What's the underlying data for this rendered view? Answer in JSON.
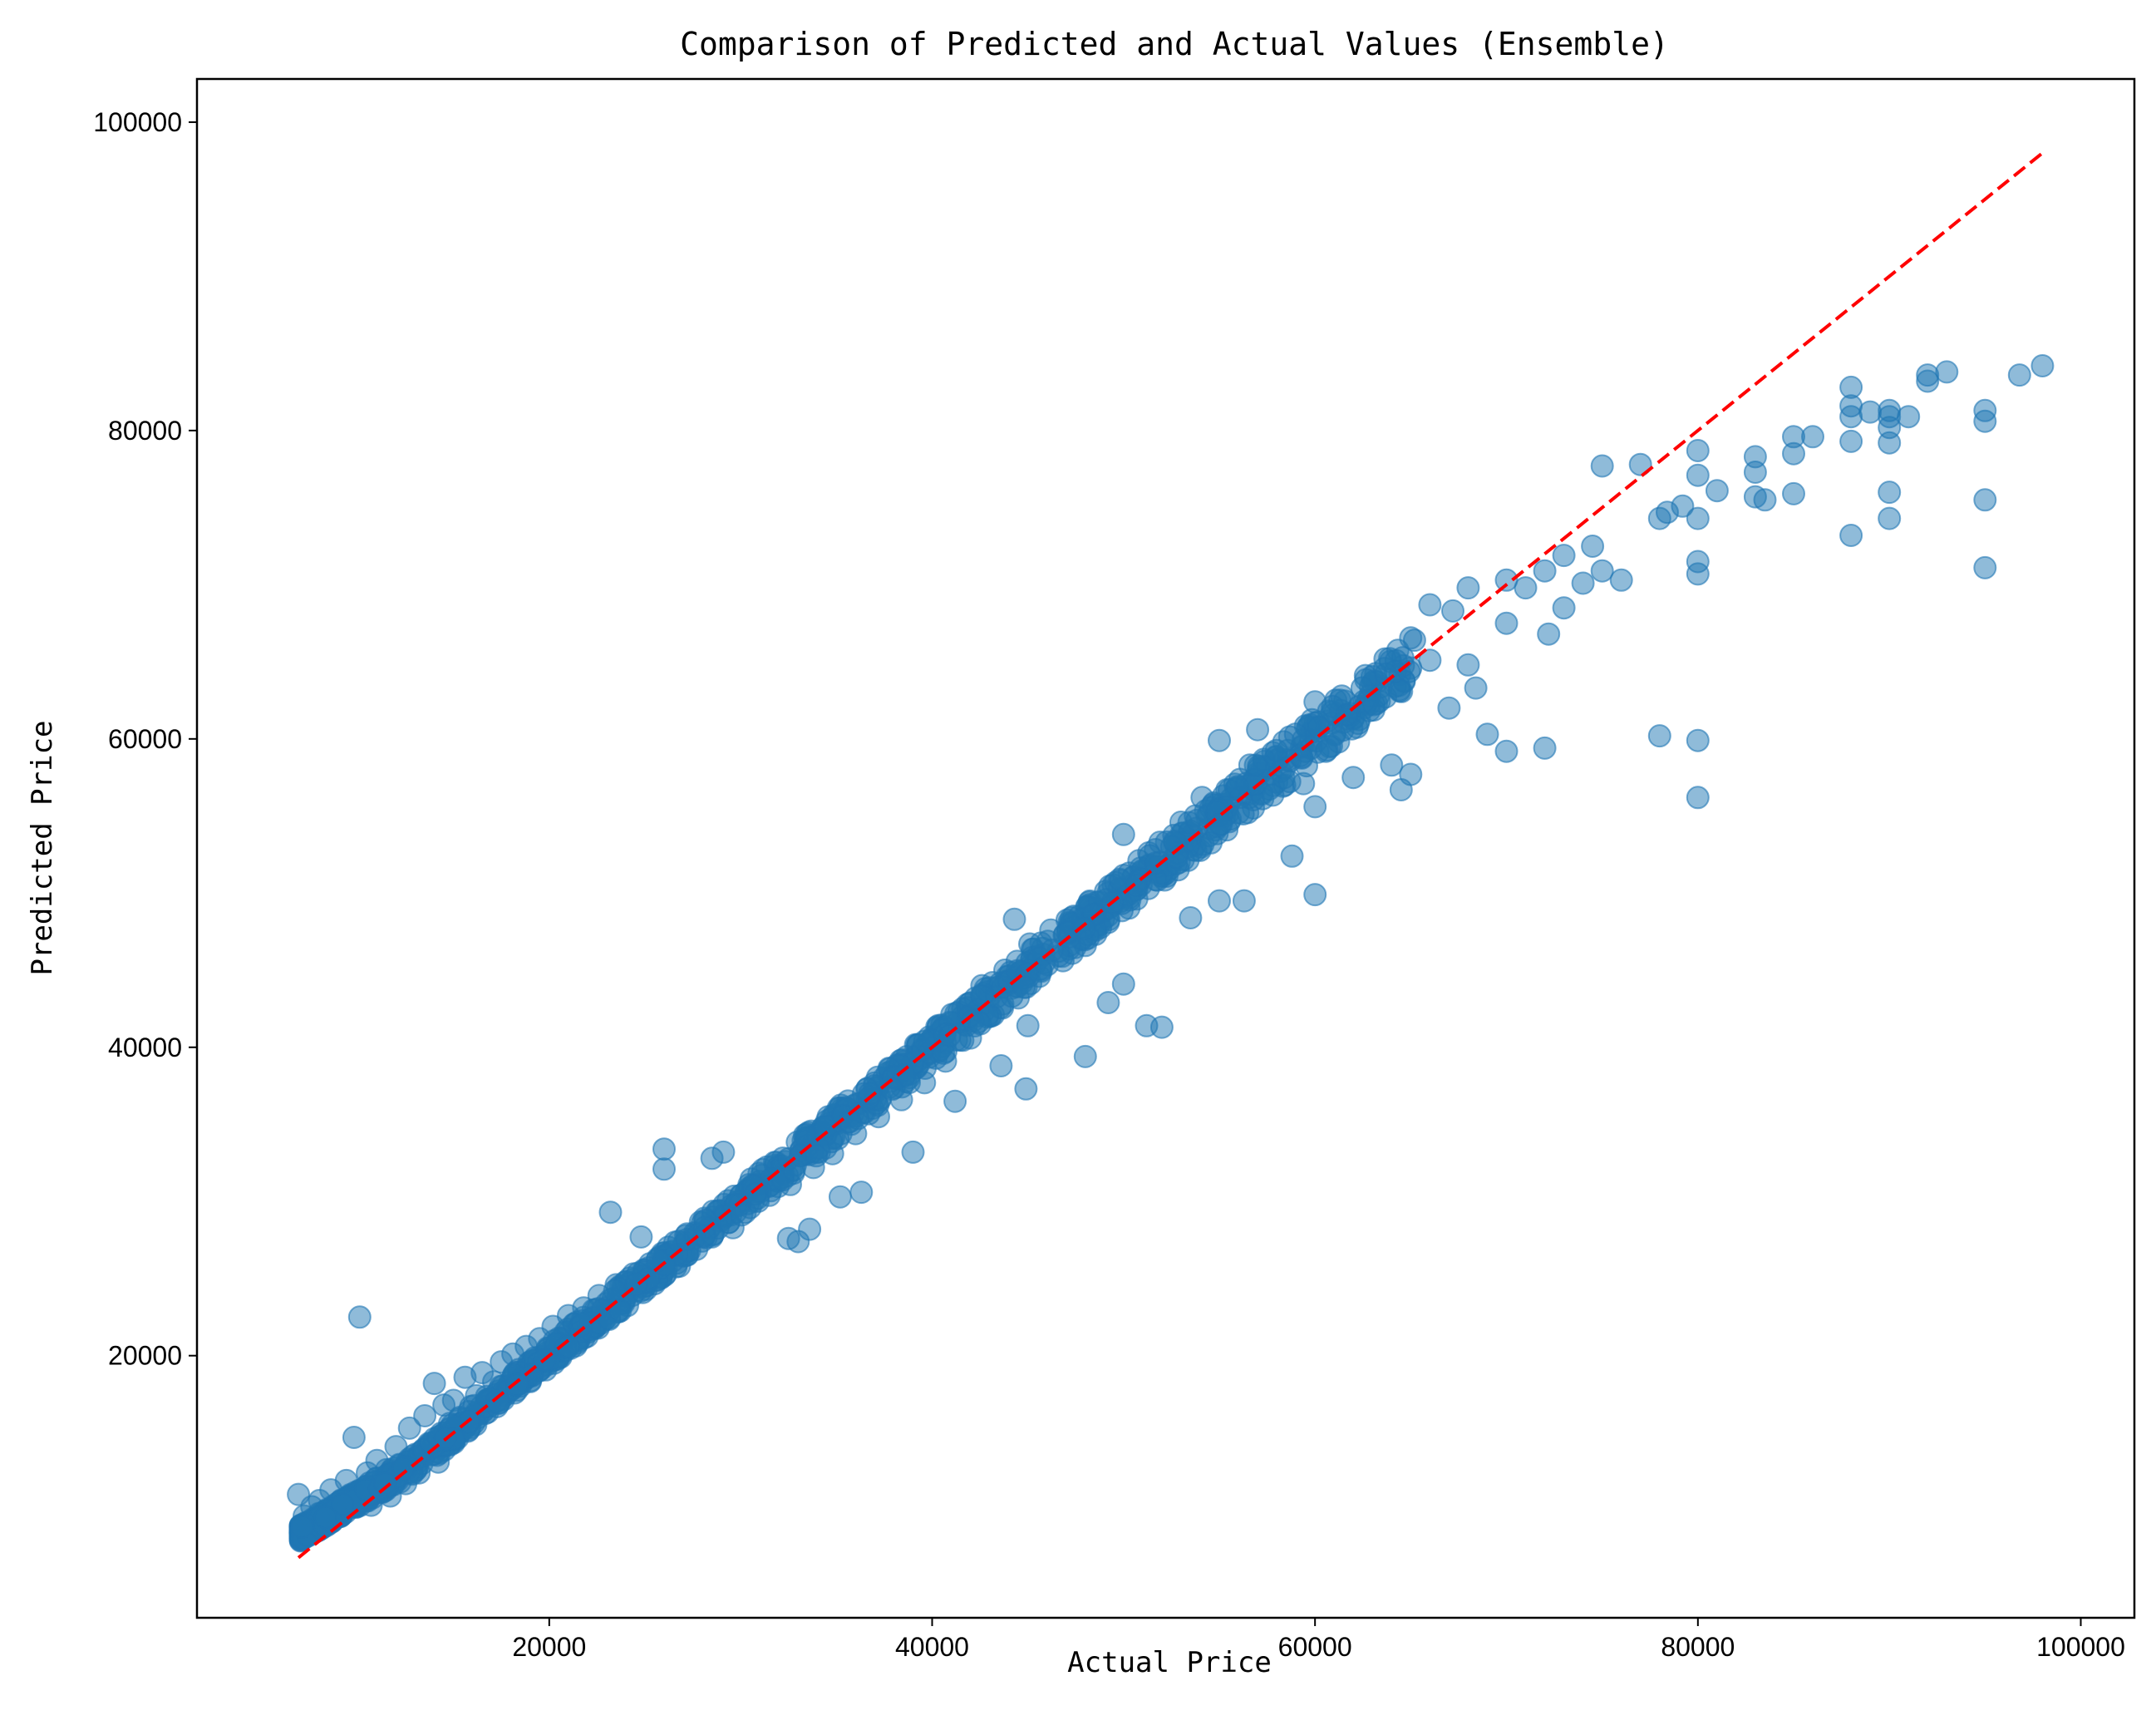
{
  "chart_data": {
    "type": "scatter",
    "title": "Comparison of Predicted and Actual Values (Ensemble)",
    "xlabel": "Actual Price",
    "ylabel": "Predicted Price",
    "xlim": [
      1600,
      102800
    ],
    "ylim": [
      3000,
      102800
    ],
    "x_ticks": [
      20000,
      40000,
      60000,
      80000,
      100000
    ],
    "y_ticks": [
      20000,
      40000,
      60000,
      80000,
      100000
    ],
    "x_tick_labels": [
      "20000",
      "40000",
      "60000",
      "80000",
      "100000"
    ],
    "y_tick_labels": [
      "20000",
      "40000",
      "60000",
      "80000",
      "100000"
    ],
    "grid": false,
    "legend": "none",
    "colors": {
      "points": "#1f77b4",
      "reference_line": "#ff0000"
    },
    "reference_line": {
      "style": "dashed",
      "x": [
        6900,
        98000
      ],
      "y": [
        6900,
        98000
      ]
    },
    "series": [
      {
        "points": [
          [
            6900,
            11000
          ],
          [
            7200,
            9600
          ],
          [
            7600,
            10200
          ],
          [
            8000,
            10600
          ],
          [
            8300,
            9900
          ],
          [
            8600,
            11300
          ],
          [
            8900,
            10400
          ],
          [
            9100,
            9800
          ],
          [
            9400,
            11900
          ],
          [
            9600,
            10700
          ],
          [
            9800,
            14700
          ],
          [
            10100,
            22500
          ],
          [
            10200,
            11100
          ],
          [
            10500,
            12400
          ],
          [
            10700,
            10300
          ],
          [
            11000,
            13200
          ],
          [
            11200,
            11800
          ],
          [
            11500,
            12600
          ],
          [
            11700,
            10900
          ],
          [
            12000,
            14100
          ],
          [
            12200,
            12900
          ],
          [
            12500,
            11700
          ],
          [
            12700,
            15300
          ],
          [
            13000,
            13600
          ],
          [
            13200,
            12400
          ],
          [
            13500,
            16100
          ],
          [
            13700,
            14300
          ],
          [
            14000,
            18200
          ],
          [
            14200,
            13100
          ],
          [
            14500,
            16800
          ],
          [
            14800,
            15600
          ],
          [
            15000,
            17100
          ],
          [
            15300,
            15900
          ],
          [
            15600,
            18600
          ],
          [
            15900,
            16700
          ],
          [
            16200,
            17400
          ],
          [
            16500,
            18900
          ],
          [
            16800,
            17100
          ],
          [
            17100,
            18300
          ],
          [
            17500,
            19600
          ],
          [
            17800,
            17900
          ],
          [
            18100,
            20100
          ],
          [
            18400,
            19100
          ],
          [
            18800,
            20600
          ],
          [
            19100,
            19500
          ],
          [
            19500,
            21100
          ],
          [
            19900,
            20200
          ],
          [
            20200,
            21900
          ],
          [
            20600,
            21000
          ],
          [
            21000,
            22600
          ],
          [
            21400,
            21600
          ],
          [
            21800,
            23100
          ],
          [
            22200,
            22100
          ],
          [
            22600,
            23900
          ],
          [
            23000,
            22700
          ],
          [
            23200,
            29300
          ],
          [
            23500,
            24600
          ],
          [
            23900,
            23400
          ],
          [
            24400,
            25300
          ],
          [
            24800,
            27700
          ],
          [
            25200,
            25700
          ],
          [
            25600,
            24900
          ],
          [
            26000,
            33400
          ],
          [
            26000,
            32100
          ],
          [
            26300,
            26700
          ],
          [
            26800,
            25800
          ],
          [
            27200,
            27900
          ],
          [
            27700,
            26900
          ],
          [
            28000,
            28600
          ],
          [
            28500,
            27700
          ],
          [
            28500,
            32800
          ],
          [
            29100,
            33200
          ],
          [
            29100,
            29100
          ],
          [
            29600,
            28300
          ],
          [
            30000,
            30400
          ],
          [
            30500,
            29600
          ],
          [
            31000,
            31300
          ],
          [
            31500,
            30400
          ],
          [
            32000,
            32100
          ],
          [
            32500,
            27600
          ],
          [
            32600,
            31100
          ],
          [
            33000,
            27400
          ],
          [
            33200,
            33100
          ],
          [
            33600,
            28200
          ],
          [
            33800,
            32200
          ],
          [
            34300,
            34300
          ],
          [
            34800,
            33100
          ],
          [
            35200,
            30300
          ],
          [
            35400,
            35500
          ],
          [
            36000,
            34400
          ],
          [
            36300,
            30600
          ],
          [
            36600,
            36500
          ],
          [
            37200,
            35500
          ],
          [
            37800,
            37800
          ],
          [
            38400,
            36600
          ],
          [
            39000,
            33200
          ],
          [
            39000,
            38900
          ],
          [
            39600,
            37700
          ],
          [
            40100,
            40400
          ],
          [
            40700,
            39100
          ],
          [
            41200,
            36500
          ],
          [
            41400,
            42300
          ],
          [
            42000,
            40600
          ],
          [
            42600,
            44000
          ],
          [
            43200,
            42100
          ],
          [
            43600,
            38800
          ],
          [
            43800,
            45000
          ],
          [
            44300,
            48300
          ],
          [
            44500,
            43200
          ],
          [
            44900,
            37300
          ],
          [
            45000,
            41400
          ],
          [
            45100,
            46700
          ],
          [
            45600,
            44600
          ],
          [
            46200,
            47600
          ],
          [
            46800,
            45900
          ],
          [
            47400,
            48500
          ],
          [
            48000,
            39400
          ],
          [
            48000,
            46600
          ],
          [
            48600,
            49400
          ],
          [
            49200,
            42900
          ],
          [
            49200,
            48100
          ],
          [
            49800,
            50900
          ],
          [
            50000,
            44100
          ],
          [
            50000,
            53800
          ],
          [
            50300,
            49700
          ],
          [
            50800,
            52100
          ],
          [
            51200,
            41400
          ],
          [
            51300,
            50300
          ],
          [
            51900,
            53300
          ],
          [
            52000,
            41300
          ],
          [
            52400,
            51800
          ],
          [
            53000,
            54600
          ],
          [
            53500,
            48400
          ],
          [
            53600,
            52800
          ],
          [
            54100,
            56200
          ],
          [
            54800,
            54100
          ],
          [
            55000,
            49500
          ],
          [
            55000,
            59900
          ],
          [
            55400,
            56700
          ],
          [
            56000,
            55200
          ],
          [
            56300,
            49500
          ],
          [
            56600,
            58300
          ],
          [
            57000,
            60600
          ],
          [
            57200,
            56500
          ],
          [
            57800,
            59100
          ],
          [
            58000,
            57200
          ],
          [
            58800,
            52400
          ],
          [
            59400,
            57100
          ],
          [
            60000,
            49900
          ],
          [
            60000,
            55600
          ],
          [
            60000,
            60600
          ],
          [
            60000,
            62400
          ],
          [
            61000,
            61600
          ],
          [
            62000,
            57500
          ],
          [
            62000,
            61300
          ],
          [
            63000,
            63600
          ],
          [
            64000,
            58300
          ],
          [
            64500,
            56700
          ],
          [
            65000,
            57700
          ],
          [
            65000,
            64600
          ],
          [
            65200,
            66400
          ],
          [
            66000,
            65100
          ],
          [
            66000,
            68700
          ],
          [
            67000,
            62000
          ],
          [
            67200,
            68300
          ],
          [
            68000,
            64800
          ],
          [
            68000,
            69800
          ],
          [
            68400,
            63300
          ],
          [
            69000,
            60300
          ],
          [
            70000,
            59200
          ],
          [
            70000,
            67500
          ],
          [
            70000,
            70300
          ],
          [
            71000,
            69800
          ],
          [
            72000,
            59400
          ],
          [
            72000,
            70900
          ],
          [
            72200,
            66800
          ],
          [
            73000,
            68500
          ],
          [
            73000,
            71900
          ],
          [
            74000,
            70100
          ],
          [
            74500,
            72500
          ],
          [
            75000,
            70900
          ],
          [
            75000,
            77700
          ],
          [
            76000,
            70300
          ],
          [
            77000,
            77800
          ],
          [
            78000,
            74300
          ],
          [
            78000,
            60200
          ],
          [
            78400,
            74700
          ],
          [
            79200,
            75100
          ],
          [
            80000,
            56200
          ],
          [
            80000,
            59900
          ],
          [
            80000,
            70700
          ],
          [
            80000,
            71500
          ],
          [
            80000,
            74300
          ],
          [
            80000,
            77100
          ],
          [
            80000,
            78700
          ],
          [
            81000,
            76100
          ],
          [
            83000,
            75700
          ],
          [
            83000,
            77300
          ],
          [
            83000,
            78300
          ],
          [
            83500,
            75500
          ],
          [
            85000,
            75900
          ],
          [
            85000,
            78500
          ],
          [
            85000,
            79600
          ],
          [
            86000,
            79600
          ],
          [
            88000,
            73200
          ],
          [
            88000,
            79300
          ],
          [
            88000,
            80900
          ],
          [
            88000,
            81600
          ],
          [
            88000,
            82800
          ],
          [
            89000,
            81200
          ],
          [
            90000,
            74300
          ],
          [
            90000,
            76000
          ],
          [
            90000,
            79200
          ],
          [
            90000,
            80200
          ],
          [
            90000,
            80900
          ],
          [
            90000,
            81300
          ],
          [
            91000,
            80900
          ],
          [
            92000,
            83200
          ],
          [
            92000,
            83600
          ],
          [
            93000,
            83800
          ],
          [
            95000,
            71100
          ],
          [
            95000,
            75500
          ],
          [
            95000,
            80600
          ],
          [
            95000,
            81300
          ],
          [
            96800,
            83600
          ],
          [
            98000,
            84200
          ]
        ]
      }
    ]
  }
}
